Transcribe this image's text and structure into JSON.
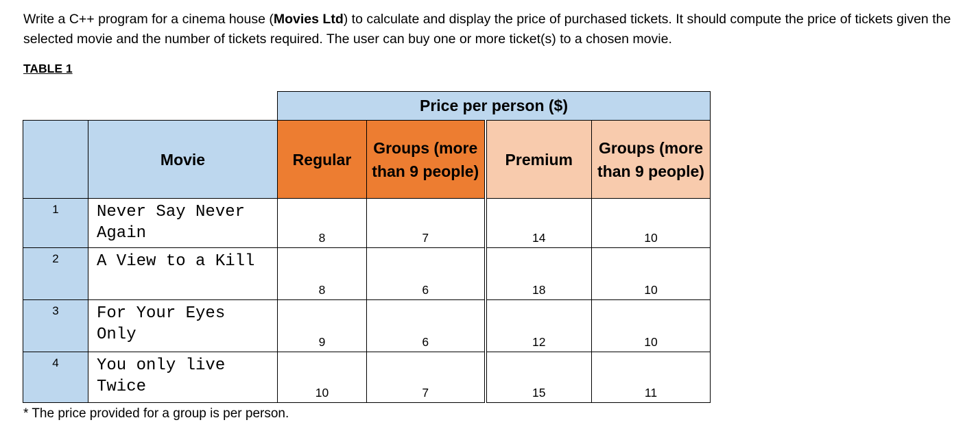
{
  "intro": {
    "text_before_bold": "Write a C++ program for a cinema house (",
    "bold_name": "Movies Ltd",
    "text_after_bold": ") to calculate and display the price of purchased tickets. It should compute the price of tickets given the selected movie and the number of tickets required. The user can buy one or more ticket(s) to a chosen movie."
  },
  "table_caption": "TABLE 1",
  "table": {
    "price_header": "Price per person ($)",
    "columns": {
      "movie": "Movie",
      "regular": "Regular",
      "regular_groups": "Groups (more than 9 people)",
      "premium": "Premium",
      "premium_groups": "Groups (more than 9 people)"
    },
    "rows": [
      {
        "index": "1",
        "movie": "Never Say Never Again",
        "regular": "8",
        "regular_groups": "7",
        "premium": "14",
        "premium_groups": "10"
      },
      {
        "index": "2",
        "movie": "A View to a Kill",
        "regular": "8",
        "regular_groups": "6",
        "premium": "18",
        "premium_groups": "10"
      },
      {
        "index": "3",
        "movie": "For Your Eyes Only",
        "regular": "9",
        "regular_groups": "6",
        "premium": "12",
        "premium_groups": "10"
      },
      {
        "index": "4",
        "movie": "You only live Twice",
        "regular": "10",
        "regular_groups": "7",
        "premium": "15",
        "premium_groups": "11"
      }
    ],
    "colors": {
      "header_blue": "#bdd7ee",
      "regular_orange": "#ed7d31",
      "premium_peach": "#f8cbad"
    }
  },
  "footnote": "* The price provided for a group is per person."
}
